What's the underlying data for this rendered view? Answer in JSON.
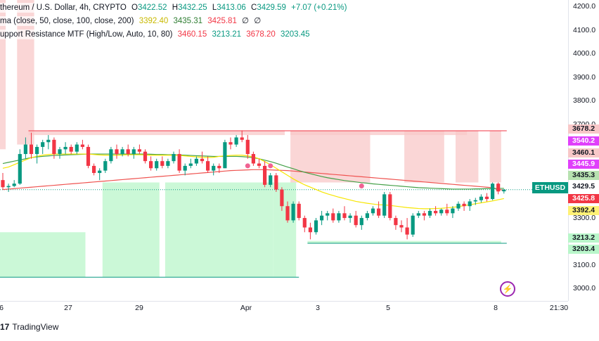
{
  "legend": {
    "main": {
      "symbol": "thereum / U.S. Dollar, 4h, CRYPTO",
      "o_label": "O",
      "o": "3422.52",
      "h_label": "H",
      "h": "3432.25",
      "l_label": "L",
      "l": "3413.06",
      "c_label": "C",
      "c": "3429.59",
      "change": "+7.07 (+0.21%)"
    },
    "ma": {
      "name": "ma (close, 50, close, 100, close, 200)",
      "v1": "3392.40",
      "v2": "3435.31",
      "v3": "3425.81",
      "v4": "∅",
      "v5": "∅"
    },
    "sr": {
      "name": "upport Resistance MTF (High/Low, Auto, 10, 80)",
      "v1": "3460.15",
      "v2": "3213.21",
      "v3": "3678.20",
      "v4": "3203.45"
    }
  },
  "price_axis": {
    "ticks": [
      "4200.0",
      "4100.0",
      "4000.0",
      "3900.0",
      "3800.0",
      "3700.0",
      "3300.0",
      "3100.0",
      "3000.0"
    ]
  },
  "price_tags": [
    {
      "text": "3678.2",
      "bg": "#f8c8c8",
      "fg": "#131722"
    },
    {
      "text": "3540.2",
      "bg": "#e040fb",
      "fg": "#ffffff"
    },
    {
      "text": "3460.1",
      "bg": "#f8c8c8",
      "fg": "#131722"
    },
    {
      "text": "3445.9",
      "bg": "#e040fb",
      "fg": "#ffffff"
    },
    {
      "text": "3435.3",
      "bg": "#b7e1b0",
      "fg": "#131722"
    },
    {
      "text": "3425.8",
      "bg": "#f23645",
      "fg": "#ffffff"
    },
    {
      "text": "3392.4",
      "bg": "#fff176",
      "fg": "#131722"
    },
    {
      "text": "3213.2",
      "bg": "#b9f6ca",
      "fg": "#131722"
    },
    {
      "text": "3203.4",
      "bg": "#b9f6ca",
      "fg": "#131722"
    }
  ],
  "symbol_tag": {
    "symbol": "ETHUSD",
    "price": "3429.5"
  },
  "time_axis": {
    "ticks": [
      "6",
      "27",
      "29",
      "Apr",
      "3",
      "5",
      "8",
      "21:30"
    ]
  },
  "brand": {
    "logo": "17",
    "name": "TradingView"
  },
  "colors": {
    "up": "#089981",
    "down": "#f23645",
    "ma50": "#f7e600",
    "ma100": "#43a047",
    "ma200": "#ef5350"
  },
  "chart_data": {
    "type": "candlestick",
    "timeframe": "4h",
    "ylim": [
      2960,
      4230
    ],
    "candles": [
      [
        3470,
        3500,
        3430,
        3440
      ],
      [
        3440,
        3455,
        3420,
        3445
      ],
      [
        3445,
        3470,
        3440,
        3455
      ],
      [
        3455,
        3600,
        3450,
        3580
      ],
      [
        3580,
        3650,
        3560,
        3620
      ],
      [
        3620,
        3670,
        3560,
        3580
      ],
      [
        3580,
        3620,
        3540,
        3610
      ],
      [
        3610,
        3640,
        3580,
        3630
      ],
      [
        3630,
        3660,
        3600,
        3640
      ],
      [
        3640,
        3650,
        3560,
        3580
      ],
      [
        3580,
        3610,
        3560,
        3600
      ],
      [
        3600,
        3630,
        3580,
        3610
      ],
      [
        3610,
        3620,
        3580,
        3590
      ],
      [
        3590,
        3630,
        3580,
        3620
      ],
      [
        3620,
        3640,
        3600,
        3610
      ],
      [
        3610,
        3620,
        3520,
        3530
      ],
      [
        3530,
        3540,
        3490,
        3500
      ],
      [
        3500,
        3520,
        3470,
        3510
      ],
      [
        3510,
        3560,
        3500,
        3550
      ],
      [
        3550,
        3610,
        3540,
        3600
      ],
      [
        3600,
        3620,
        3560,
        3580
      ],
      [
        3580,
        3610,
        3570,
        3600
      ],
      [
        3600,
        3620,
        3570,
        3580
      ],
      [
        3580,
        3610,
        3560,
        3600
      ],
      [
        3600,
        3620,
        3580,
        3590
      ],
      [
        3590,
        3600,
        3540,
        3550
      ],
      [
        3550,
        3570,
        3510,
        3520
      ],
      [
        3520,
        3560,
        3510,
        3550
      ],
      [
        3550,
        3570,
        3520,
        3530
      ],
      [
        3530,
        3560,
        3520,
        3550
      ],
      [
        3550,
        3590,
        3540,
        3580
      ],
      [
        3580,
        3600,
        3500,
        3510
      ],
      [
        3510,
        3540,
        3490,
        3530
      ],
      [
        3530,
        3560,
        3520,
        3540
      ],
      [
        3540,
        3570,
        3530,
        3560
      ],
      [
        3560,
        3590,
        3540,
        3550
      ],
      [
        3550,
        3570,
        3500,
        3510
      ],
      [
        3510,
        3540,
        3490,
        3530
      ],
      [
        3530,
        3540,
        3500,
        3520
      ],
      [
        3520,
        3640,
        3520,
        3630
      ],
      [
        3630,
        3650,
        3600,
        3620
      ],
      [
        3620,
        3660,
        3610,
        3650
      ],
      [
        3650,
        3680,
        3630,
        3640
      ],
      [
        3640,
        3660,
        3560,
        3580
      ],
      [
        3580,
        3590,
        3530,
        3540
      ],
      [
        3540,
        3560,
        3520,
        3530
      ],
      [
        3530,
        3550,
        3440,
        3450
      ],
      [
        3450,
        3500,
        3440,
        3490
      ],
      [
        3490,
        3500,
        3420,
        3430
      ],
      [
        3430,
        3440,
        3340,
        3360
      ],
      [
        3360,
        3380,
        3290,
        3300
      ],
      [
        3300,
        3380,
        3290,
        3370
      ],
      [
        3370,
        3380,
        3300,
        3310
      ],
      [
        3310,
        3320,
        3250,
        3270
      ],
      [
        3270,
        3290,
        3220,
        3250
      ],
      [
        3250,
        3310,
        3240,
        3300
      ],
      [
        3300,
        3340,
        3280,
        3320
      ],
      [
        3320,
        3340,
        3300,
        3330
      ],
      [
        3330,
        3350,
        3290,
        3300
      ],
      [
        3300,
        3340,
        3290,
        3330
      ],
      [
        3330,
        3360,
        3300,
        3310
      ],
      [
        3310,
        3330,
        3290,
        3320
      ],
      [
        3320,
        3340,
        3270,
        3280
      ],
      [
        3280,
        3320,
        3260,
        3310
      ],
      [
        3310,
        3340,
        3300,
        3330
      ],
      [
        3330,
        3360,
        3320,
        3350
      ],
      [
        3350,
        3380,
        3310,
        3320
      ],
      [
        3320,
        3420,
        3310,
        3410
      ],
      [
        3410,
        3420,
        3300,
        3310
      ],
      [
        3310,
        3320,
        3260,
        3280
      ],
      [
        3280,
        3300,
        3250,
        3270
      ],
      [
        3270,
        3310,
        3220,
        3240
      ],
      [
        3240,
        3330,
        3230,
        3320
      ],
      [
        3320,
        3340,
        3310,
        3330
      ],
      [
        3330,
        3340,
        3300,
        3320
      ],
      [
        3320,
        3350,
        3310,
        3340
      ],
      [
        3340,
        3360,
        3320,
        3330
      ],
      [
        3330,
        3350,
        3320,
        3345
      ],
      [
        3345,
        3370,
        3320,
        3330
      ],
      [
        3330,
        3360,
        3310,
        3350
      ],
      [
        3350,
        3380,
        3340,
        3370
      ],
      [
        3370,
        3380,
        3340,
        3360
      ],
      [
        3360,
        3390,
        3340,
        3380
      ],
      [
        3380,
        3395,
        3365,
        3385
      ],
      [
        3385,
        3410,
        3375,
        3400
      ],
      [
        3400,
        3415,
        3380,
        3390
      ],
      [
        3390,
        3460,
        3385,
        3455
      ],
      [
        3455,
        3460,
        3410,
        3422
      ],
      [
        3422.52,
        3432.25,
        3413.06,
        3429.59
      ]
    ],
    "ma50": [
      3520,
      3525,
      3535,
      3545,
      3555,
      3565,
      3570,
      3575,
      3578,
      3580,
      3580,
      3580,
      3580,
      3580,
      3580,
      3580,
      3578,
      3576,
      3575,
      3575,
      3575,
      3576,
      3577,
      3577,
      3577,
      3576,
      3575,
      3575,
      3575,
      3575,
      3575,
      3574,
      3572,
      3570,
      3568,
      3566,
      3565,
      3566,
      3570,
      3572,
      3574,
      3575,
      3575,
      3572,
      3568,
      3560,
      3548,
      3535,
      3520,
      3505,
      3490,
      3475,
      3462,
      3450,
      3440,
      3430,
      3420,
      3412,
      3405,
      3398,
      3392,
      3386,
      3380,
      3376,
      3372,
      3369,
      3366,
      3365,
      3363,
      3360,
      3357,
      3354,
      3352,
      3350,
      3349,
      3349,
      3350,
      3351,
      3353,
      3355,
      3358,
      3362,
      3366,
      3370,
      3374,
      3378,
      3382,
      3387,
      3392
    ],
    "ma100": [
      3540,
      3545,
      3550,
      3555,
      3560,
      3565,
      3568,
      3570,
      3572,
      3574,
      3575,
      3576,
      3577,
      3578,
      3579,
      3580,
      3580,
      3580,
      3580,
      3580,
      3580,
      3580,
      3580,
      3580,
      3580,
      3580,
      3579,
      3578,
      3578,
      3577,
      3577,
      3576,
      3575,
      3574,
      3573,
      3572,
      3571,
      3570,
      3570,
      3570,
      3570,
      3570,
      3569,
      3567,
      3564,
      3560,
      3554,
      3548,
      3541,
      3533,
      3525,
      3518,
      3510,
      3503,
      3497,
      3491,
      3485,
      3480,
      3476,
      3472,
      3468,
      3465,
      3462,
      3459,
      3457,
      3454,
      3452,
      3450,
      3448,
      3446,
      3444,
      3442,
      3440,
      3438,
      3437,
      3436,
      3435,
      3434,
      3433,
      3432,
      3432,
      3432,
      3432,
      3433,
      3433,
      3434,
      3434,
      3435,
      3435
    ],
    "ma200": [
      3430,
      3432,
      3434,
      3436,
      3438,
      3440,
      3442,
      3444,
      3446,
      3448,
      3450,
      3452,
      3454,
      3456,
      3458,
      3460,
      3462,
      3464,
      3466,
      3468,
      3470,
      3472,
      3474,
      3476,
      3478,
      3480,
      3482,
      3484,
      3486,
      3488,
      3490,
      3492,
      3494,
      3496,
      3498,
      3500,
      3502,
      3504,
      3506,
      3508,
      3510,
      3511,
      3512,
      3513,
      3514,
      3514,
      3514,
      3513,
      3512,
      3511,
      3510,
      3508,
      3506,
      3504,
      3502,
      3500,
      3498,
      3496,
      3494,
      3492,
      3490,
      3488,
      3486,
      3484,
      3482,
      3480,
      3478,
      3476,
      3474,
      3472,
      3470,
      3468,
      3466,
      3464,
      3462,
      3460,
      3458,
      3456,
      3454,
      3452,
      3450,
      3448,
      3446,
      3444,
      3442,
      3440,
      3438,
      3432,
      3425.81
    ],
    "resistance_zones": [
      {
        "x0": 0,
        "x1": 1,
        "y0": 3600,
        "y1": 4230
      },
      {
        "x0": 3,
        "x1": 6,
        "y0": 3620,
        "y1": 4230
      },
      {
        "x0": 5,
        "x1": 50,
        "y0": 3660,
        "y1": 3678.2
      },
      {
        "x0": 51,
        "x1": 82,
        "y0": 3660,
        "y1": 3678.2
      },
      {
        "x0": 51,
        "x1": 65,
        "y0": 3460,
        "y1": 3678.2
      },
      {
        "x0": 71,
        "x1": 78,
        "y0": 3460,
        "y1": 3678.2
      },
      {
        "x0": 80,
        "x1": 84,
        "y0": 3460,
        "y1": 3678.2
      },
      {
        "x0": 86,
        "x1": 88,
        "y0": 3460,
        "y1": 3678.2
      }
    ],
    "support_zones": [
      {
        "x0": 0,
        "x1": 15,
        "y0": 3060,
        "y1": 3250
      },
      {
        "x0": 18,
        "x1": 28,
        "y0": 3060,
        "y1": 3460
      },
      {
        "x0": 29,
        "x1": 48,
        "y0": 3060,
        "y1": 3460
      },
      {
        "x0": 48,
        "x1": 52,
        "y0": 3060,
        "y1": 3460
      },
      {
        "x0": 54,
        "x1": 88,
        "y0": 3203.45,
        "y1": 3213.21
      }
    ],
    "markers": [
      {
        "x": 43,
        "y": 3530
      },
      {
        "x": 47,
        "y": 3530
      },
      {
        "x": 63,
        "y": 3445
      }
    ]
  }
}
